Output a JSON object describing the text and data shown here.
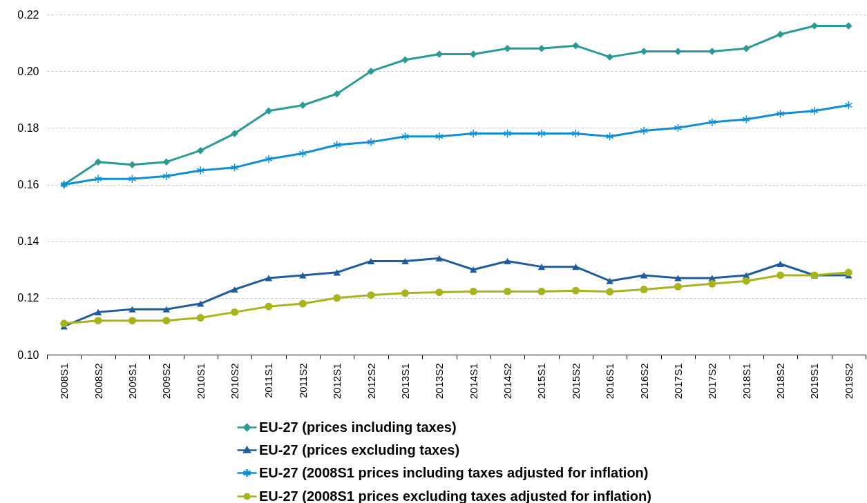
{
  "chart_data": {
    "type": "line",
    "categories": [
      "2008S1",
      "2008S2",
      "2009S1",
      "2009S2",
      "2010S1",
      "2010S2",
      "2011S1",
      "2011S2",
      "2012S1",
      "2012S2",
      "2013S1",
      "2013S2",
      "2014S1",
      "2014S2",
      "2015S1",
      "2015S2",
      "2016S1",
      "2016S2",
      "2017S1",
      "2017S2",
      "2018S1",
      "2018S2",
      "2019S1",
      "2019S2"
    ],
    "series": [
      {
        "name": "EU-27 (prices including taxes)",
        "color": "#2a9a95",
        "marker": "diamond",
        "values": [
          0.16,
          0.168,
          0.167,
          0.168,
          0.172,
          0.178,
          0.186,
          0.188,
          0.192,
          0.2,
          0.204,
          0.206,
          0.206,
          0.208,
          0.208,
          0.209,
          0.205,
          0.207,
          0.207,
          0.207,
          0.208,
          0.213,
          0.216,
          0.216
        ]
      },
      {
        "name": "EU-27 (prices excluding taxes)",
        "color": "#1f5c9e",
        "marker": "triangle",
        "values": [
          0.11,
          0.115,
          0.116,
          0.116,
          0.118,
          0.123,
          0.127,
          0.128,
          0.129,
          0.133,
          0.133,
          0.134,
          0.13,
          0.133,
          0.131,
          0.131,
          0.126,
          0.128,
          0.127,
          0.127,
          0.128,
          0.132,
          0.128,
          0.128
        ]
      },
      {
        "name": "EU-27 (2008S1 prices including taxes adjusted for inflation)",
        "color": "#0f8ed4",
        "marker": "cross",
        "values": [
          0.16,
          0.162,
          0.162,
          0.163,
          0.165,
          0.166,
          0.169,
          0.171,
          0.174,
          0.175,
          0.177,
          0.177,
          0.178,
          0.178,
          0.178,
          0.178,
          0.177,
          0.179,
          0.18,
          0.182,
          0.183,
          0.185,
          0.186,
          0.188
        ]
      },
      {
        "name": "EU-27 (2008S1 prices excluding taxes adjusted for inflation)",
        "color": "#a8b41c",
        "marker": "circle",
        "values": [
          0.111,
          0.112,
          0.112,
          0.112,
          0.113,
          0.115,
          0.117,
          0.118,
          0.12,
          0.121,
          0.1217,
          0.122,
          0.1223,
          0.1223,
          0.1223,
          0.1226,
          0.1222,
          0.123,
          0.124,
          0.125,
          0.126,
          0.128,
          0.128,
          0.129
        ]
      }
    ],
    "ylim": [
      0.1,
      0.22
    ],
    "yticks": [
      {
        "value": 0.1,
        "label": "0.10"
      },
      {
        "value": 0.12,
        "label": "0.12"
      },
      {
        "value": 0.14,
        "label": "0.14"
      },
      {
        "value": 0.16,
        "label": "0.16"
      },
      {
        "value": 0.18,
        "label": "0.18"
      },
      {
        "value": 0.2,
        "label": "0.20"
      },
      {
        "value": 0.22,
        "label": "0.22"
      }
    ],
    "grid": "y",
    "legend": "bottom"
  }
}
